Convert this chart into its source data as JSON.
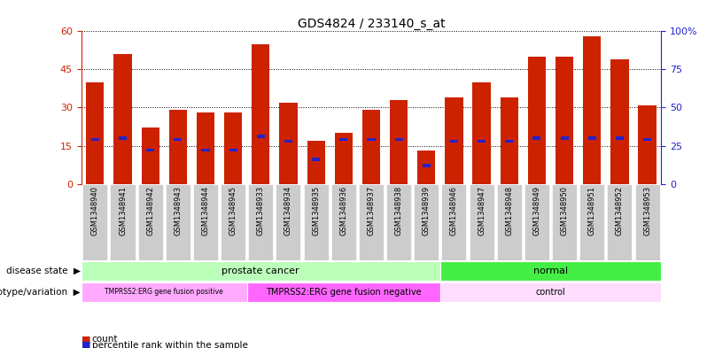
{
  "title": "GDS4824 / 233140_s_at",
  "samples": [
    "GSM1348940",
    "GSM1348941",
    "GSM1348942",
    "GSM1348943",
    "GSM1348944",
    "GSM1348945",
    "GSM1348933",
    "GSM1348934",
    "GSM1348935",
    "GSM1348936",
    "GSM1348937",
    "GSM1348938",
    "GSM1348939",
    "GSM1348946",
    "GSM1348947",
    "GSM1348948",
    "GSM1348949",
    "GSM1348950",
    "GSM1348951",
    "GSM1348952",
    "GSM1348953"
  ],
  "counts": [
    40,
    51,
    22,
    29,
    28,
    28,
    55,
    32,
    17,
    20,
    29,
    33,
    13,
    34,
    40,
    34,
    50,
    50,
    58,
    49,
    31
  ],
  "percentile_ranks": [
    29,
    30,
    22,
    29,
    22,
    22,
    31,
    28,
    16,
    29,
    29,
    29,
    12,
    28,
    28,
    28,
    30,
    30,
    30,
    30,
    29
  ],
  "ylim_left": [
    0,
    60
  ],
  "ylim_right": [
    0,
    100
  ],
  "yticks_left": [
    0,
    15,
    30,
    45,
    60
  ],
  "yticks_right": [
    0,
    25,
    50,
    75,
    100
  ],
  "bar_color": "#cc2200",
  "percentile_color": "#2222cc",
  "disease_state_groups": [
    {
      "label": "prostate cancer",
      "start": 0,
      "end": 13,
      "color": "#bbffbb"
    },
    {
      "label": "normal",
      "start": 13,
      "end": 21,
      "color": "#44ee44"
    }
  ],
  "genotype_groups": [
    {
      "label": "TMPRSS2:ERG gene fusion positive",
      "start": 0,
      "end": 6,
      "color": "#ffaaff"
    },
    {
      "label": "TMPRSS2:ERG gene fusion negative",
      "start": 6,
      "end": 13,
      "color": "#ff66ff"
    },
    {
      "label": "control",
      "start": 13,
      "end": 21,
      "color": "#ffddff"
    }
  ],
  "bg_color": "#ffffff",
  "left_axis_color": "#cc2200",
  "right_axis_color": "#2222cc",
  "sample_bg_color": "#cccccc",
  "label_left_disease": "disease state",
  "label_left_geno": "genotype/variation"
}
